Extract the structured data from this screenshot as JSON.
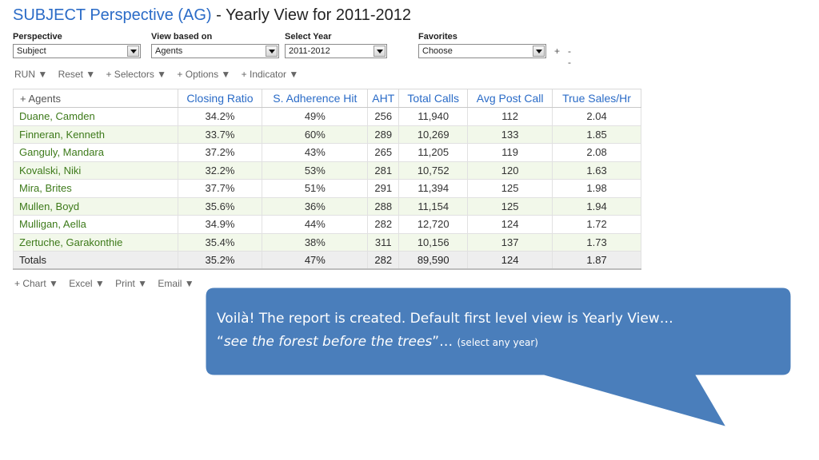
{
  "header": {
    "title_part1": "SUBJECT Perspective (AG)",
    "title_sep": " - ",
    "title_part2": "Yearly View for 2011-2012"
  },
  "selectors": {
    "perspective": {
      "label": "Perspective",
      "value": "Subject"
    },
    "view_based_on": {
      "label": "View based on",
      "value": "Agents"
    },
    "select_year": {
      "label": "Select Year",
      "value": "2011-2012"
    },
    "favorites": {
      "label": "Favorites",
      "value": "Choose",
      "plus": "+",
      "dash": "--"
    }
  },
  "toolbar": {
    "run": "RUN ▼",
    "reset": "Reset ▼",
    "selectors": "+ Selectors ▼",
    "options": "+ Options ▼",
    "indicator": "+ Indicator ▼"
  },
  "table": {
    "columns": [
      "+ Agents",
      "Closing Ratio",
      "S. Adherence Hit",
      "AHT",
      "Total Calls",
      "Avg Post Call",
      "True Sales/Hr"
    ],
    "rows": [
      [
        "Duane, Camden",
        "34.2%",
        "49%",
        "256",
        "11,940",
        "112",
        "2.04"
      ],
      [
        "Finneran, Kenneth",
        "33.7%",
        "60%",
        "289",
        "10,269",
        "133",
        "1.85"
      ],
      [
        "Ganguly, Mandara",
        "37.2%",
        "43%",
        "265",
        "11,205",
        "119",
        "2.08"
      ],
      [
        "Kovalski, Niki",
        "32.2%",
        "53%",
        "281",
        "10,752",
        "120",
        "1.63"
      ],
      [
        "Mira, Brites",
        "37.7%",
        "51%",
        "291",
        "11,394",
        "125",
        "1.98"
      ],
      [
        "Mullen, Boyd",
        "35.6%",
        "36%",
        "288",
        "11,154",
        "125",
        "1.94"
      ],
      [
        "Mulligan, Aella",
        "34.9%",
        "44%",
        "282",
        "12,720",
        "124",
        "1.72"
      ],
      [
        "Zertuche, Garakonthie",
        "35.4%",
        "38%",
        "311",
        "10,156",
        "137",
        "1.73"
      ]
    ],
    "totals": [
      "Totals",
      "35.2%",
      "47%",
      "282",
      "89,590",
      "124",
      "1.87"
    ]
  },
  "bottombar": {
    "chart": "+ Chart ▼",
    "excel": "Excel ▼",
    "print": "Print ▼",
    "email": "Email ▼"
  },
  "callout": {
    "line1": "Voilà! The report is created. Default first level view is Yearly View…",
    "open_quote": "“",
    "italic": "see the forest before the trees",
    "close_quote": "”… ",
    "small": "(select any year)",
    "fill_color": "#4a7ebb",
    "border_color": "#ffffff"
  }
}
